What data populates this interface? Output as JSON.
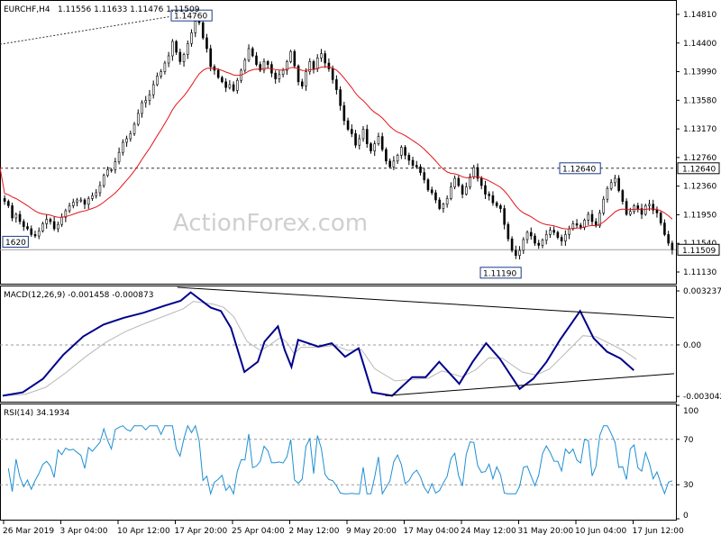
{
  "chart_data": {
    "type": "candlestick",
    "main": {
      "title": "EURCHF,H4",
      "ohlc_label": "1.11556 1.11633 1.11476 1.11509",
      "y_ticks": [
        "1.14810",
        "1.14400",
        "1.13990",
        "1.13580",
        "1.13170",
        "1.12760",
        "1.12360",
        "1.11950",
        "1.11540",
        "1.11130"
      ],
      "ylim": [
        1.1105,
        1.1495
      ],
      "watermark": "ActionForex.com",
      "current_price": "1.11509",
      "resistance_level": "1.12640",
      "annotations": [
        {
          "text": "1.14760",
          "price": 1.1476
        },
        {
          "text": "1.12640",
          "price": 1.1264
        },
        {
          "text": "1.11190",
          "price": 1.1119
        },
        {
          "text": "1620",
          "price": 1.1162
        }
      ],
      "closes": [
        1.1218,
        1.1212,
        1.1195,
        1.12,
        1.119,
        1.1183,
        1.118,
        1.1172,
        1.117,
        1.1177,
        1.1187,
        1.1193,
        1.119,
        1.118,
        1.1186,
        1.1196,
        1.1205,
        1.1212,
        1.1217,
        1.122,
        1.122,
        1.1214,
        1.1222,
        1.1226,
        1.123,
        1.124,
        1.1254,
        1.1262,
        1.1262,
        1.1273,
        1.1286,
        1.13,
        1.1305,
        1.1312,
        1.1325,
        1.134,
        1.1355,
        1.1358,
        1.1366,
        1.138,
        1.1392,
        1.1398,
        1.141,
        1.142,
        1.144,
        1.1425,
        1.1412,
        1.1422,
        1.1437,
        1.1452,
        1.1468,
        1.1466,
        1.1445,
        1.143,
        1.1405,
        1.14,
        1.139,
        1.1384,
        1.1376,
        1.138,
        1.1372,
        1.1386,
        1.14,
        1.1414,
        1.143,
        1.142,
        1.1408,
        1.14,
        1.1412,
        1.1408,
        1.1396,
        1.1388,
        1.1394,
        1.14,
        1.1412,
        1.1426,
        1.1406,
        1.1384,
        1.1378,
        1.1398,
        1.1412,
        1.1402,
        1.1417,
        1.1423,
        1.141,
        1.1402,
        1.1387,
        1.1373,
        1.1351,
        1.133,
        1.1318,
        1.1312,
        1.1296,
        1.1305,
        1.1318,
        1.1298,
        1.1288,
        1.1298,
        1.1308,
        1.129,
        1.1274,
        1.1266,
        1.1274,
        1.1282,
        1.1293,
        1.1282,
        1.1275,
        1.1268,
        1.1266,
        1.1258,
        1.1248,
        1.1234,
        1.123,
        1.122,
        1.1208,
        1.1214,
        1.1222,
        1.1238,
        1.125,
        1.124,
        1.1228,
        1.1238,
        1.1252,
        1.1265,
        1.125,
        1.124,
        1.1228,
        1.1226,
        1.1216,
        1.1212,
        1.1208,
        1.1186,
        1.1166,
        1.115,
        1.1143,
        1.115,
        1.1165,
        1.1175,
        1.117,
        1.116,
        1.1157,
        1.1164,
        1.1172,
        1.1178,
        1.1175,
        1.1168,
        1.1163,
        1.1172,
        1.118,
        1.1187,
        1.1185,
        1.1182,
        1.1192,
        1.12,
        1.119,
        1.1184,
        1.1202,
        1.1221,
        1.1236,
        1.1244,
        1.125,
        1.1233,
        1.1218,
        1.12,
        1.1204,
        1.1212,
        1.1208,
        1.12,
        1.1212,
        1.1214,
        1.1206,
        1.1202,
        1.1188,
        1.1172,
        1.116,
        1.1151
      ]
    },
    "macd": {
      "label": "MACD(12,26,9) -0.001458 -0.000873",
      "y_ticks": [
        "0.003237",
        "0.00",
        "-0.003042"
      ],
      "ylim": [
        -0.0033,
        0.0034
      ],
      "points": [
        [
          0,
          -0.003
        ],
        [
          0.03,
          -0.0028
        ],
        [
          0.06,
          -0.002
        ],
        [
          0.09,
          -0.0006
        ],
        [
          0.12,
          0.0005
        ],
        [
          0.15,
          0.0012
        ],
        [
          0.18,
          0.0016
        ],
        [
          0.21,
          0.0019
        ],
        [
          0.24,
          0.0023
        ],
        [
          0.265,
          0.0026
        ],
        [
          0.28,
          0.0031
        ],
        [
          0.31,
          0.0022
        ],
        [
          0.325,
          0.002
        ],
        [
          0.34,
          0.001
        ],
        [
          0.36,
          -0.0016
        ],
        [
          0.38,
          -0.001
        ],
        [
          0.39,
          0.0002
        ],
        [
          0.41,
          0.0011
        ],
        [
          0.42,
          -0.0003
        ],
        [
          0.43,
          -0.0013
        ],
        [
          0.44,
          0.0003
        ],
        [
          0.47,
          -0.0001
        ],
        [
          0.49,
          0.0001
        ],
        [
          0.51,
          -0.0007
        ],
        [
          0.53,
          -0.0002
        ],
        [
          0.55,
          -0.0028
        ],
        [
          0.58,
          -0.003
        ],
        [
          0.61,
          -0.0019
        ],
        [
          0.63,
          -0.0019
        ],
        [
          0.65,
          -0.001
        ],
        [
          0.68,
          -0.0023
        ],
        [
          0.7,
          -0.001
        ],
        [
          0.72,
          0.0001
        ],
        [
          0.74,
          -0.0008
        ],
        [
          0.77,
          -0.0026
        ],
        [
          0.79,
          -0.002
        ],
        [
          0.81,
          -0.001
        ],
        [
          0.83,
          0.0003
        ],
        [
          0.86,
          0.002
        ],
        [
          0.88,
          0.0004
        ],
        [
          0.9,
          -0.0004
        ],
        [
          0.92,
          -0.0008
        ],
        [
          0.94,
          -0.0015
        ]
      ],
      "trendlines": [
        {
          "from": [
            0.26,
            0.0034
          ],
          "to": [
            1.0,
            0.0016
          ]
        },
        {
          "from": [
            0.57,
            -0.003
          ],
          "to": [
            1.0,
            -0.0017
          ]
        }
      ]
    },
    "rsi": {
      "label": "RSI(14) 34.1934",
      "y_ticks": [
        "100",
        "70",
        "30",
        "0"
      ],
      "ylim": [
        0,
        100
      ],
      "levels": [
        70,
        30
      ]
    },
    "x_labels": [
      "26 Mar 2019",
      "3 Apr 04:00",
      "10 Apr 12:00",
      "17 Apr 20:00",
      "25 Apr 04:00",
      "2 May 12:00",
      "9 May 20:00",
      "17 May 04:00",
      "24 May 12:00",
      "31 May 20:00",
      "10 Jun 04:00",
      "17 Jun 12:00"
    ],
    "colors": {
      "candle": "#000000",
      "ma": "#e3141a",
      "macd_main": "#00008b",
      "macd_signal": "#b8b8b8",
      "rsi": "#1e8fd4",
      "level": "#909090",
      "grid_dash": "#9a9a9a"
    }
  }
}
